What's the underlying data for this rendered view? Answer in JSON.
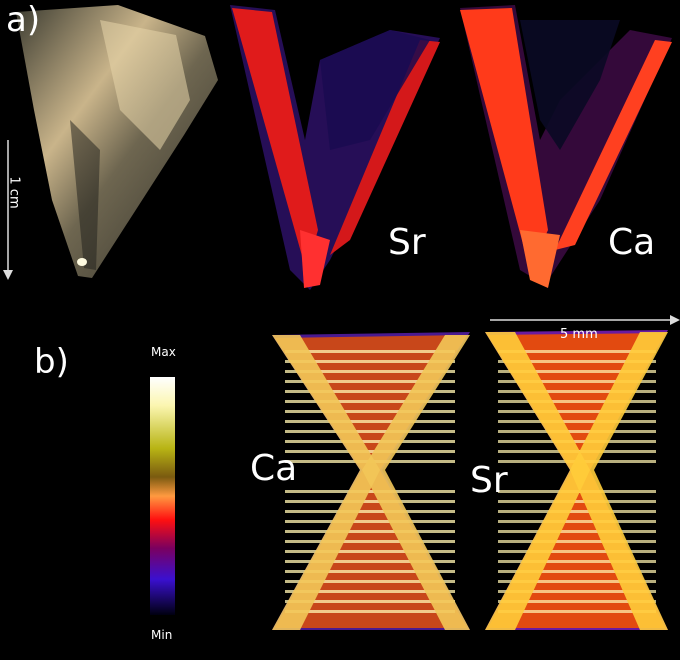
{
  "figure": {
    "panel_a": {
      "label": "a)",
      "scale_bar_label": "1 cm",
      "maps": [
        {
          "element": "Sr"
        },
        {
          "element": "Ca"
        }
      ]
    },
    "panel_b": {
      "label": "b)",
      "scale_bar_label": "5 mm",
      "colorbar": {
        "max_label": "Max",
        "min_label": "Min"
      },
      "maps": [
        {
          "element": "Ca"
        },
        {
          "element": "Sr"
        }
      ]
    }
  }
}
